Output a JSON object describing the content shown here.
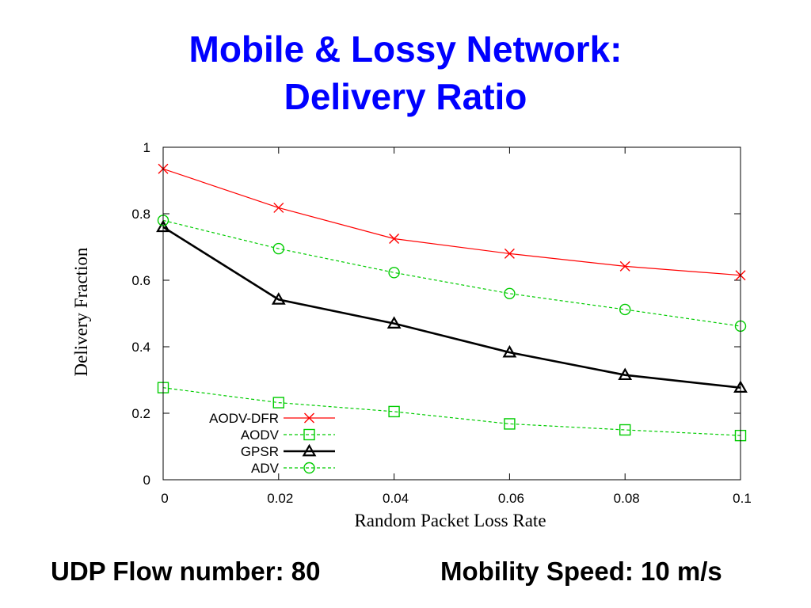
{
  "slide": {
    "title_line1": "Mobile & Lossy Network:",
    "title_line2": "Delivery Ratio",
    "footer_left": "UDP Flow number: 80",
    "footer_right": "Mobility Speed: 10 m/s"
  },
  "chart_data": {
    "type": "line",
    "title": "",
    "xlabel": "Random Packet Loss Rate",
    "ylabel": "Delivery Fraction",
    "xlim": [
      0,
      0.1
    ],
    "ylim": [
      0,
      1
    ],
    "x": [
      0,
      0.02,
      0.04,
      0.06,
      0.08,
      0.1
    ],
    "xticks": [
      0,
      0.02,
      0.04,
      0.06,
      0.08,
      0.1
    ],
    "xtick_labels": [
      "0",
      "0.02",
      "0.04",
      "0.06",
      "0.08",
      "0.1"
    ],
    "yticks": [
      0,
      0.2,
      0.4,
      0.6,
      0.8,
      1
    ],
    "ytick_labels": [
      "0",
      "0.2",
      "0.4",
      "0.6",
      "0.8",
      "1"
    ],
    "grid": false,
    "legend_position": "bottom-left",
    "series": [
      {
        "name": "AODV-DFR",
        "values": [
          0.935,
          0.818,
          0.725,
          0.68,
          0.642,
          0.615
        ],
        "color": "#ff0000",
        "marker": "x",
        "dash": "solid"
      },
      {
        "name": "AODV",
        "values": [
          0.277,
          0.232,
          0.205,
          0.168,
          0.15,
          0.133
        ],
        "color": "#00cc00",
        "marker": "square",
        "dash": "dashed"
      },
      {
        "name": "GPSR",
        "values": [
          0.76,
          0.542,
          0.47,
          0.383,
          0.315,
          0.277
        ],
        "color": "#000000",
        "marker": "triangle",
        "dash": "solid-bold"
      },
      {
        "name": "ADV",
        "values": [
          0.78,
          0.695,
          0.623,
          0.56,
          0.512,
          0.462
        ],
        "color": "#00cc00",
        "marker": "circle",
        "dash": "dashed"
      }
    ]
  }
}
